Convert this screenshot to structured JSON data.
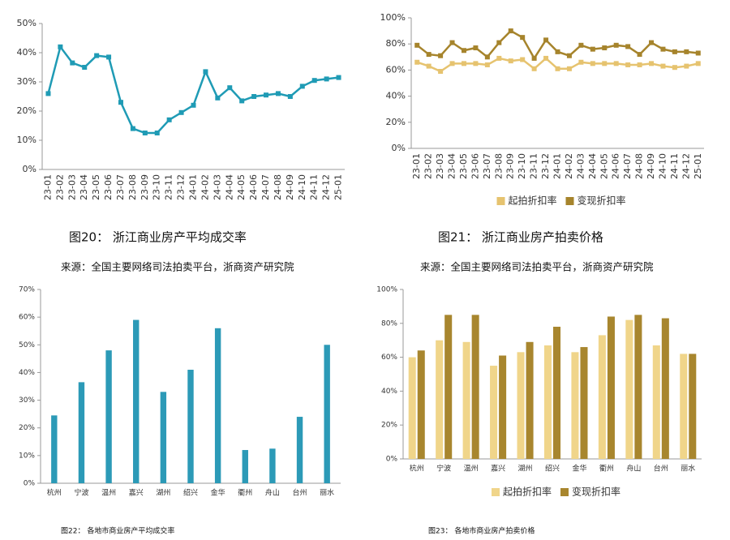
{
  "chart_data": [
    {
      "type": "line",
      "caption": "图20：  浙江商业房产平均成交率",
      "source": "来源：全国主要网络司法拍卖平台，浙商资产研究院",
      "categories": [
        "23-01",
        "23-02",
        "23-03",
        "23-04",
        "23-05",
        "23-06",
        "23-07",
        "23-08",
        "23-09",
        "23-10",
        "23-11",
        "23-12",
        "24-01",
        "24-02",
        "24-03",
        "24-04",
        "24-05",
        "24-06",
        "24-07",
        "24-08",
        "24-09",
        "24-10",
        "24-11",
        "24-12",
        "25-01"
      ],
      "series": [
        {
          "color": "#1f9bb5",
          "values": [
            26,
            42,
            36.5,
            35,
            39,
            38.5,
            23,
            14,
            12.5,
            12.5,
            17,
            19.5,
            22,
            33.5,
            24.5,
            28,
            23.5,
            25,
            25.5,
            26,
            25,
            28.5,
            30.5,
            31,
            31.5
          ]
        }
      ],
      "ylim": [
        0,
        50
      ],
      "yticks": [
        {
          "value": 0,
          "label": "0%"
        },
        {
          "value": 10,
          "label": "10%"
        },
        {
          "value": 20,
          "label": "20%"
        },
        {
          "value": 30,
          "label": "30%"
        },
        {
          "value": 40,
          "label": "40%"
        },
        {
          "value": 50,
          "label": "50%"
        }
      ]
    },
    {
      "type": "line",
      "caption": "图21：  浙江商业房产拍卖价格",
      "source": "来源：全国主要网络司法拍卖平台，浙商资产研究院",
      "categories": [
        "23-01",
        "23-02",
        "23-03",
        "23-04",
        "23-05",
        "23-06",
        "23-07",
        "23-08",
        "23-09",
        "23-10",
        "23-11",
        "23-12",
        "24-01",
        "24-02",
        "24-03",
        "24-04",
        "24-05",
        "24-06",
        "24-07",
        "24-08",
        "24-09",
        "24-10",
        "24-11",
        "24-12",
        "25-01"
      ],
      "series": [
        {
          "name": "起拍折扣率",
          "color": "#e6c36f",
          "values": [
            66,
            63,
            59,
            65,
            65,
            65,
            64,
            69,
            67,
            68,
            61,
            69,
            61,
            61,
            66,
            65,
            65,
            65,
            64,
            64,
            65,
            63,
            62,
            63,
            65
          ]
        },
        {
          "name": "变现折扣率",
          "color": "#a6842c",
          "values": [
            79,
            72,
            71,
            81,
            75,
            77,
            70,
            81,
            90,
            85,
            69,
            83,
            74,
            71,
            79,
            76,
            77,
            79,
            78,
            72,
            81,
            76,
            74,
            74,
            73
          ]
        }
      ],
      "ylim": [
        0,
        100
      ],
      "yticks": [
        {
          "value": 0,
          "label": "0%"
        },
        {
          "value": 20,
          "label": "20%"
        },
        {
          "value": 40,
          "label": "40%"
        },
        {
          "value": 60,
          "label": "60%"
        },
        {
          "value": 80,
          "label": "80%"
        },
        {
          "value": 100,
          "label": "100%"
        }
      ],
      "legend": "bottom"
    },
    {
      "type": "bar",
      "caption": "图22：  各地市商业房产平均成交率",
      "categories": [
        "杭州",
        "宁波",
        "温州",
        "嘉兴",
        "湖州",
        "绍兴",
        "金华",
        "衢州",
        "舟山",
        "台州",
        "丽水"
      ],
      "series": [
        {
          "color": "#2c9ab7",
          "values": [
            24.5,
            36.5,
            48,
            59,
            33,
            41,
            56,
            12,
            12.5,
            24,
            50
          ]
        }
      ],
      "ylim": [
        0,
        70
      ],
      "yticks": [
        {
          "value": 0,
          "label": "0%"
        },
        {
          "value": 10,
          "label": "10%"
        },
        {
          "value": 20,
          "label": "20%"
        },
        {
          "value": 30,
          "label": "30%"
        },
        {
          "value": 40,
          "label": "40%"
        },
        {
          "value": 50,
          "label": "50%"
        },
        {
          "value": 60,
          "label": "60%"
        },
        {
          "value": 70,
          "label": "70%"
        }
      ]
    },
    {
      "type": "bar",
      "caption": "图23：  各地市商业房产拍卖价格",
      "categories": [
        "杭州",
        "宁波",
        "温州",
        "嘉兴",
        "湖州",
        "绍兴",
        "金华",
        "衢州",
        "舟山",
        "台州",
        "丽水"
      ],
      "series": [
        {
          "name": "起拍折扣率",
          "color": "#f0d58a",
          "values": [
            60,
            70,
            69,
            55,
            63,
            67,
            63,
            73,
            82,
            67,
            62
          ]
        },
        {
          "name": "变现折扣率",
          "color": "#a8862e",
          "values": [
            64,
            85,
            85,
            61,
            69,
            78,
            66,
            84,
            85,
            83,
            62
          ]
        }
      ],
      "ylim": [
        0,
        100
      ],
      "yticks": [
        {
          "value": 0,
          "label": "0%"
        },
        {
          "value": 20,
          "label": "20%"
        },
        {
          "value": 40,
          "label": "40%"
        },
        {
          "value": 60,
          "label": "60%"
        },
        {
          "value": 80,
          "label": "80%"
        },
        {
          "value": 100,
          "label": "100%"
        }
      ],
      "legend": "bottom"
    }
  ]
}
